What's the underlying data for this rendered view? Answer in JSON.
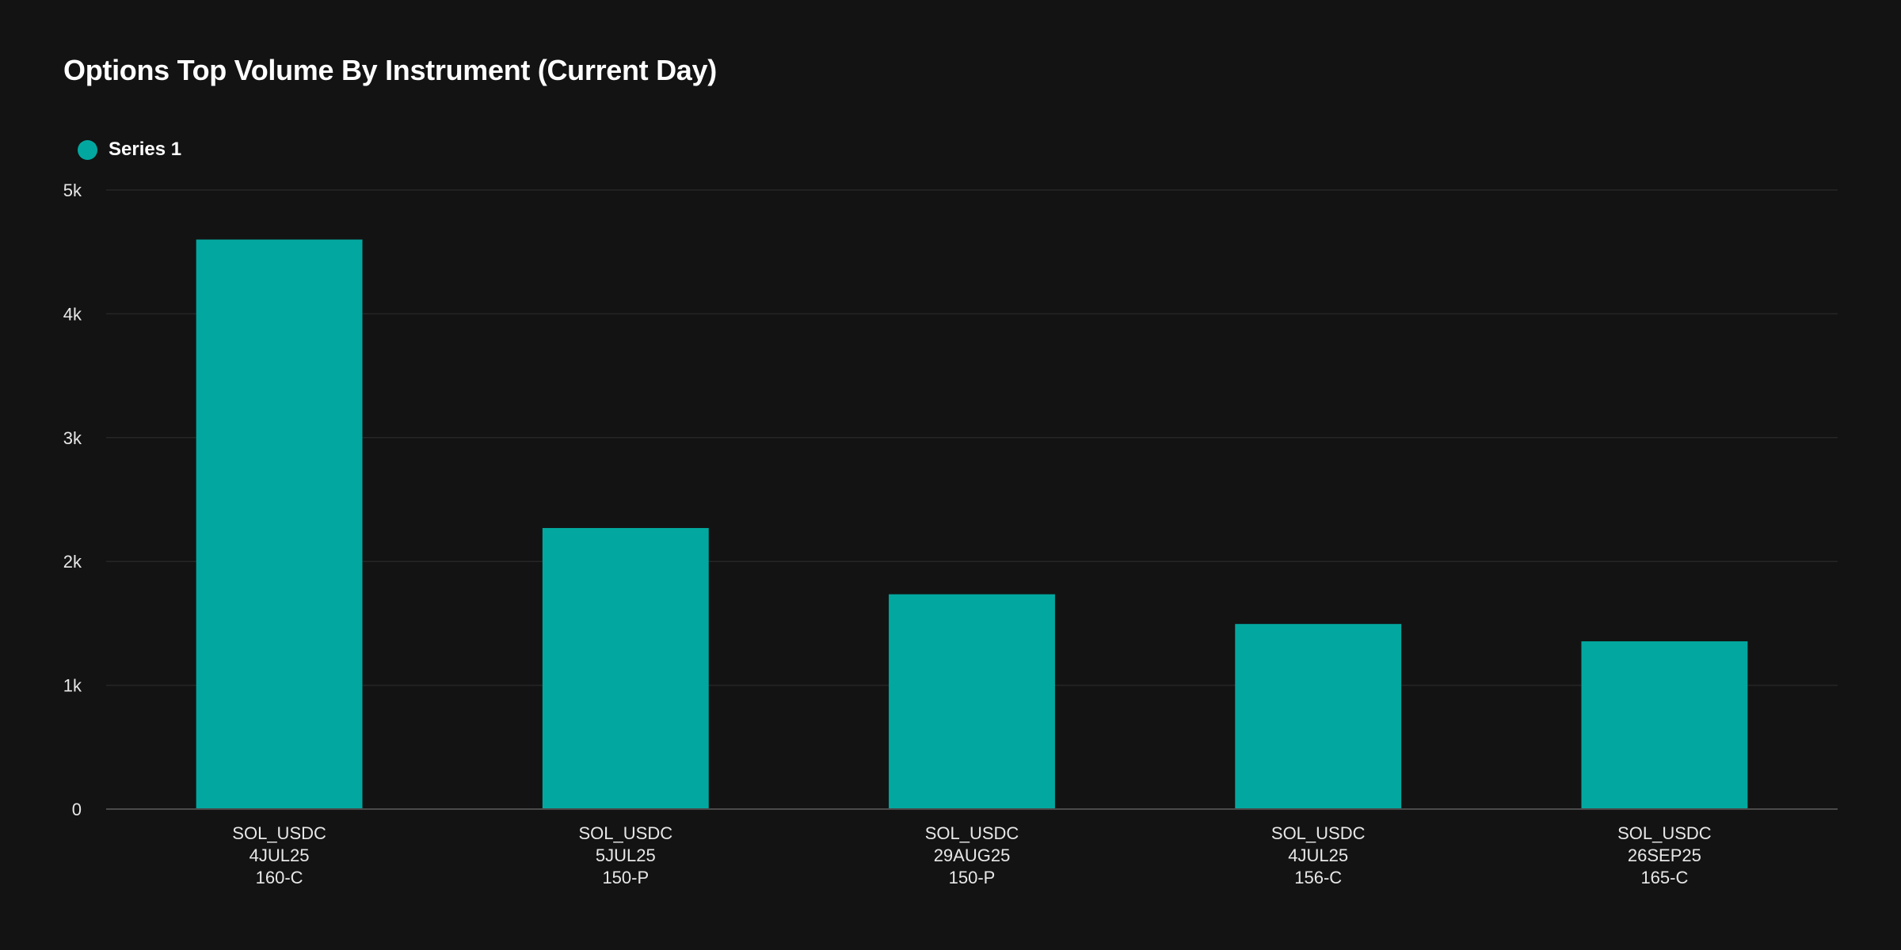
{
  "chart_data": {
    "type": "bar",
    "title": "Options Top Volume By Instrument (Current Day)",
    "xlabel": "",
    "ylabel": "",
    "ylim": [
      0,
      5000
    ],
    "yticks": [
      0,
      1000,
      2000,
      3000,
      4000,
      5000
    ],
    "ytick_labels": [
      "0",
      "1k",
      "2k",
      "3k",
      "4k",
      "5k"
    ],
    "grid": true,
    "legend_position": "top-left",
    "categories": [
      [
        "SOL_USDC",
        "4JUL25",
        "160-C"
      ],
      [
        "SOL_USDC",
        "5JUL25",
        "150-P"
      ],
      [
        "SOL_USDC",
        "29AUG25",
        "150-P"
      ],
      [
        "SOL_USDC",
        "4JUL25",
        "156-C"
      ],
      [
        "SOL_USDC",
        "26SEP25",
        "165-C"
      ]
    ],
    "series": [
      {
        "name": "Series 1",
        "color": "#02a8a0",
        "values": [
          4600,
          2270,
          1735,
          1495,
          1355
        ]
      }
    ]
  }
}
